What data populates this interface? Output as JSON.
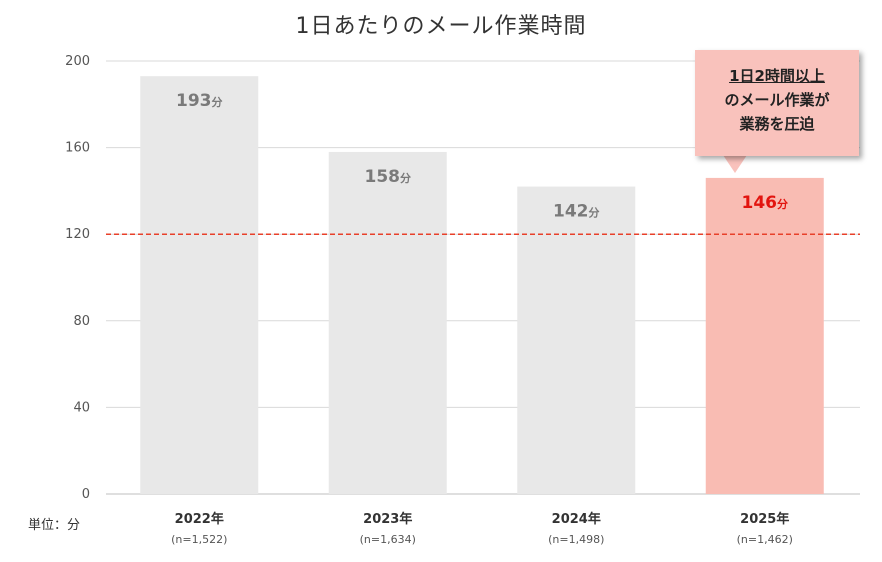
{
  "chart_data": {
    "type": "bar",
    "title": "1日あたりのメール作業時間",
    "categories": [
      "2022年",
      "2023年",
      "2024年",
      "2025年"
    ],
    "sample_sizes": [
      "(n=1,522)",
      "(n=1,634)",
      "(n=1,498)",
      "(n=1,462)"
    ],
    "values": [
      193,
      158,
      142,
      146
    ],
    "value_unit": "分",
    "ylim": [
      0,
      200
    ],
    "yticks": [
      0,
      40,
      80,
      120,
      160,
      200
    ],
    "grid": true,
    "reference_line": {
      "value": 120,
      "style": "dashed",
      "color": "#e8402a"
    },
    "bar_colors": [
      "#e8e8e8",
      "#e8e8e8",
      "#e8e8e8",
      "#f9bcb3"
    ],
    "value_label_colors": [
      "#7a7a7a",
      "#7a7a7a",
      "#7a7a7a",
      "#e2140f"
    ],
    "unit_note": "単位：分",
    "callout": {
      "highlight": "1日2時間以上",
      "line2": "のメール作業が",
      "line3": "業務を圧迫",
      "color": "#f9c2bc"
    }
  }
}
